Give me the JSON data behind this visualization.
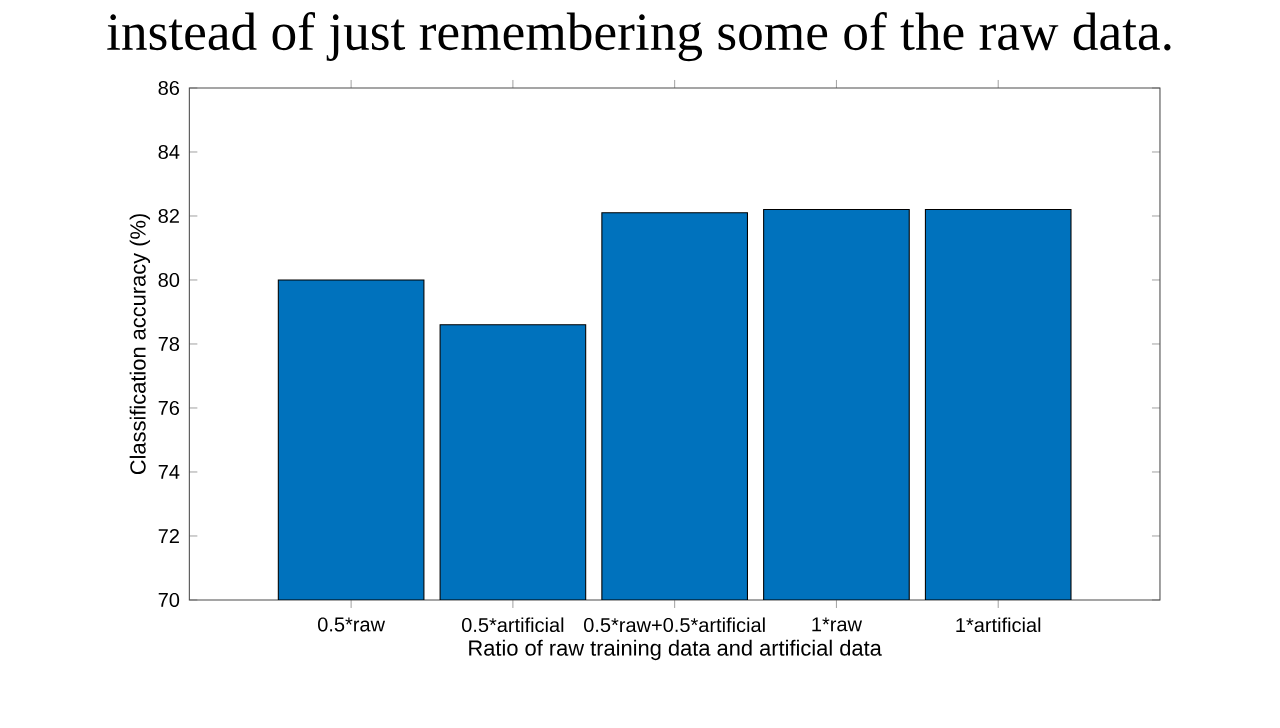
{
  "chart_data": {
    "type": "bar",
    "categories": [
      "0.5*raw",
      "0.5*artificial",
      "0.5*raw+0.5*artificial",
      "1*raw",
      "1*artificial"
    ],
    "values": [
      80.0,
      78.6,
      82.1,
      82.2,
      82.2
    ],
    "color": "#0072bd",
    "xlabel": "Ratio of raw training data and artificial data",
    "ylabel": "Classification accuracy (%)",
    "ylim": [
      70,
      86
    ],
    "yticks": [
      70,
      72,
      74,
      76,
      78,
      80,
      82,
      84,
      86
    ],
    "grid": false,
    "annotations": [
      "instead of just remembering some of the raw data."
    ]
  }
}
